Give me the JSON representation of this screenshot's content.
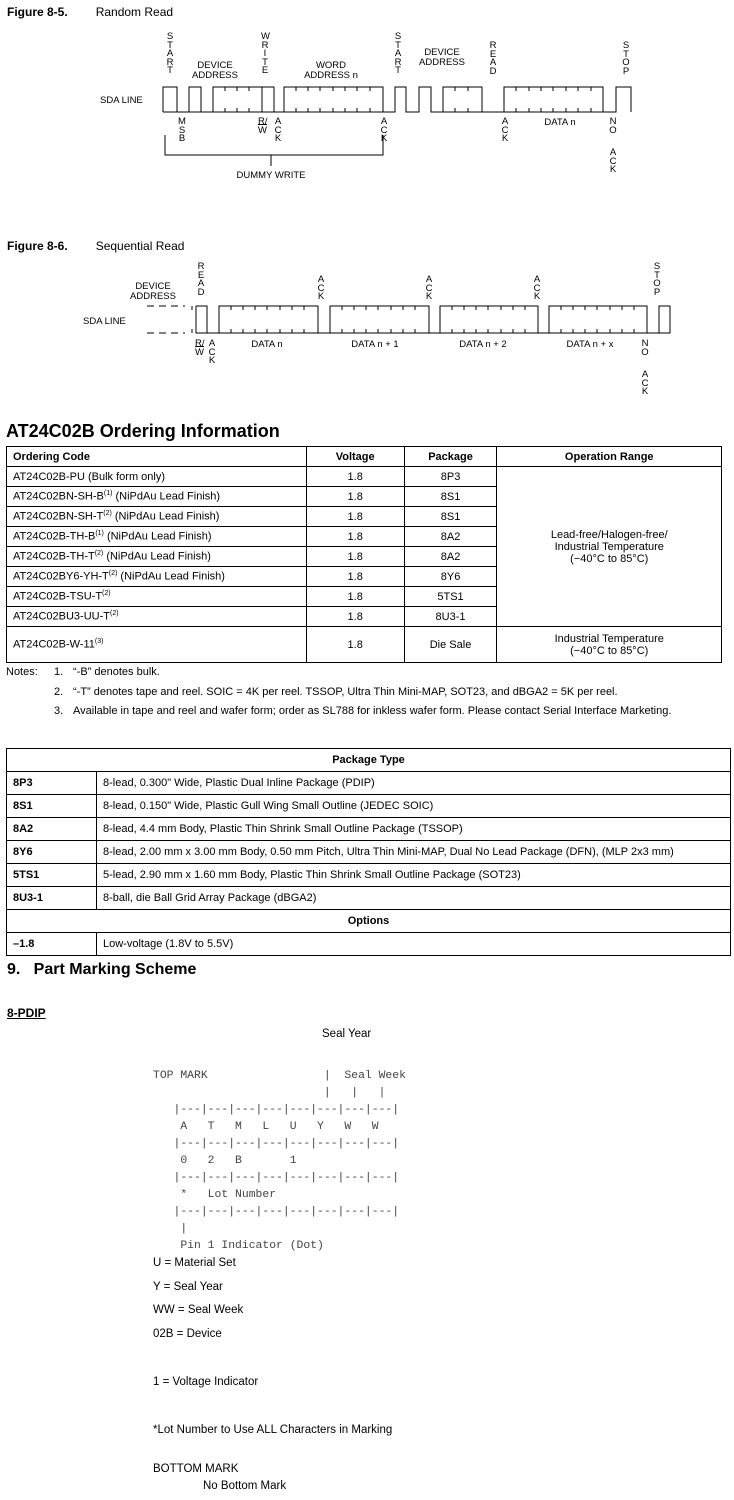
{
  "fig85": {
    "number": "Figure 8-5.",
    "title": "Random Read",
    "start1": "START",
    "device_address1": "DEVICE ADDRESS",
    "write": "WRITE",
    "word_address": "WORD ADDRESS n",
    "start2": "START",
    "device_address2": "DEVICE ADDRESS",
    "read": "READ",
    "stop": "STOP",
    "sda_line": "SDA LINE",
    "msb": "MSB",
    "rw": {
      "r": "R",
      "slash": "/",
      "w": "W"
    },
    "ack1": "ACK",
    "ack2": "ACK",
    "ack3": "ACK",
    "data_n": "DATA n",
    "no": "NO",
    "no_ack": "ACK",
    "dummy_write": "DUMMY WRITE"
  },
  "fig86": {
    "number": "Figure 8-6.",
    "title": "Sequential Read",
    "device_address": "DEVICE ADDRESS",
    "read": "READ",
    "ack1": "ACK",
    "ack2": "ACK",
    "ack3": "ACK",
    "stop": "STOP",
    "sda_line": "SDA LINE",
    "rw": {
      "r": "R",
      "slash": "/",
      "w": "W"
    },
    "ack0": "ACK",
    "data": [
      "DATA n",
      "DATA n + 1",
      "DATA n + 2",
      "DATA n + x"
    ],
    "no": "NO",
    "no_ack": "ACK"
  },
  "ordering": {
    "heading": "AT24C02B Ordering Information",
    "headers": [
      "Ordering Code",
      "Voltage",
      "Package",
      "Operation Range"
    ],
    "rows": [
      {
        "code": "AT24C02B-PU (Bulk form only)",
        "sup": "",
        "suffix": "",
        "voltage": "1.8",
        "package": "8P3"
      },
      {
        "code": "AT24C02BN-SH-B",
        "sup": "(1)",
        "suffix": " (NiPdAu Lead Finish)",
        "voltage": "1.8",
        "package": "8S1"
      },
      {
        "code": "AT24C02BN-SH-T",
        "sup": "(2)",
        "suffix": " (NiPdAu Lead Finish)",
        "voltage": "1.8",
        "package": "8S1"
      },
      {
        "code": "AT24C02B-TH-B",
        "sup": "(1)",
        "suffix": " (NiPdAu Lead Finish)",
        "voltage": "1.8",
        "package": "8A2"
      },
      {
        "code": "AT24C02B-TH-T",
        "sup": "(2)",
        "suffix": " (NiPdAu Lead Finish)",
        "voltage": "1.8",
        "package": "8A2"
      },
      {
        "code": "AT24C02BY6-YH-T",
        "sup": "(2)",
        "suffix": " (NiPdAu Lead Finish)",
        "voltage": "1.8",
        "package": "8Y6"
      },
      {
        "code": "AT24C02B-TSU-T",
        "sup": "(2)",
        "suffix": "",
        "voltage": "1.8",
        "package": "5TS1"
      },
      {
        "code": "AT24C02BU3-UU-T",
        "sup": "(2)",
        "suffix": "",
        "voltage": "1.8",
        "package": "8U3-1"
      },
      {
        "code": "AT24C02B-W-11",
        "sup": "(3)",
        "suffix": "",
        "voltage": "1.8",
        "package": "Die Sale"
      }
    ],
    "range_main": [
      "Lead-free/Halogen-free/",
      "Industrial Temperature",
      "(−40°C to 85°C)"
    ],
    "range_die": [
      "Industrial Temperature",
      "(−40°C to 85°C)"
    ],
    "notes_label": "Notes:",
    "notes": [
      {
        "num": "1.",
        "text": "“-B” denotes bulk."
      },
      {
        "num": "2.",
        "text": "“-T” denotes tape and reel. SOIC = 4K per reel. TSSOP, Ultra Thin Mini-MAP, SOT23, and dBGA2 = 5K per reel."
      },
      {
        "num": "3.",
        "text": "Available in tape and reel and wafer form; order as SL788 for inkless wafer form. Please contact Serial Interface Marketing."
      }
    ]
  },
  "package_type": {
    "header": "Package Type",
    "rows": [
      {
        "code": "8P3",
        "desc": "8-lead, 0.300\" Wide, Plastic Dual Inline Package (PDIP)"
      },
      {
        "code": "8S1",
        "desc": "8-lead, 0.150\" Wide, Plastic Gull Wing Small Outline (JEDEC SOIC)"
      },
      {
        "code": "8A2",
        "desc": "8-lead, 4.4 mm Body, Plastic Thin Shrink Small Outline Package (TSSOP)"
      },
      {
        "code": "8Y6",
        "desc": "8-lead, 2.00 mm x 3.00 mm Body, 0.50 mm Pitch, Ultra Thin Mini-MAP, Dual No Lead Package (DFN), (MLP 2x3 mm)"
      },
      {
        "code": "5TS1",
        "desc": "5-lead, 2.90 mm x 1.60 mm Body, Plastic Thin Shrink Small Outline Package (SOT23)"
      },
      {
        "code": "8U3-1",
        "desc": "8-ball, die Ball Grid Array Package (dBGA2)"
      }
    ],
    "options_header": "Options",
    "options": [
      {
        "code": "–1.8",
        "desc": "Low-voltage (1.8V to 5.5V)"
      }
    ]
  },
  "marking": {
    "heading": "9.   Part Marking Scheme",
    "subheading": "8-PDIP",
    "seal_year": "Seal Year",
    "diagram_lines": [
      "TOP MARK                 |  Seal Week",
      "                         |   |   |",
      "   |---|---|---|---|---|---|---|---|",
      "    A   T   M   L   U   Y   W   W",
      "   |---|---|---|---|---|---|---|---|",
      "    0   2   B       1",
      "   |---|---|---|---|---|---|---|---|",
      "    *   Lot Number",
      "   |---|---|---|---|---|---|---|---|",
      "    |",
      "    Pin 1 Indicator (Dot)"
    ],
    "legend": [
      "U = Material Set",
      "Y = Seal Year",
      "WW = Seal Week",
      "02B = Device",
      "1 = Voltage Indicator",
      "*Lot Number to Use ALL Characters in Marking"
    ],
    "bottom_mark": "BOTTOM MARK",
    "no_bottom_mark": "No Bottom Mark"
  }
}
